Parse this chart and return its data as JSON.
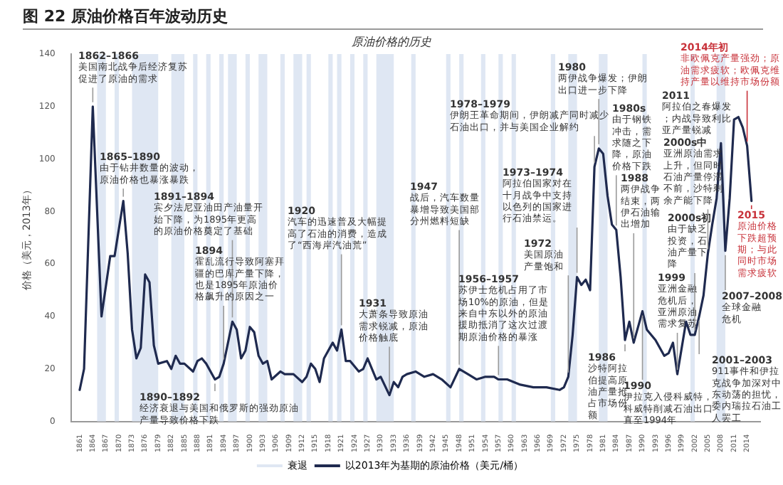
{
  "chart_data": {
    "type": "line",
    "title": "图 22 原油价格百年波动历史",
    "subtitle": "原油价格的历史",
    "ylabel": "价格（美元，2013年）",
    "xlim": [
      1859,
      2017
    ],
    "xticks": [
      1861,
      1864,
      1867,
      1870,
      1873,
      1876,
      1879,
      1882,
      1885,
      1888,
      1891,
      1894,
      1897,
      1900,
      1903,
      1906,
      1909,
      1912,
      1915,
      1918,
      1921,
      1924,
      1927,
      1930,
      1933,
      1936,
      1939,
      1942,
      1945,
      1948,
      1951,
      1954,
      1957,
      1960,
      1963,
      1966,
      1969,
      1972,
      1975,
      1978,
      1981,
      1984,
      1987,
      1990,
      1993,
      1996,
      1999,
      2002,
      2005,
      2008,
      2011,
      2014
    ],
    "ylim": [
      0,
      140
    ],
    "yticks": [
      0,
      20,
      40,
      60,
      80,
      100,
      120,
      140
    ],
    "grid": false,
    "legend": "bottom",
    "marker": "none",
    "line_style": "solid",
    "series": [
      {
        "name": "以2013年为基期的原油价格（美元/桶）",
        "color": "#1f2a4f",
        "x": [
          1861,
          1862,
          1864,
          1866,
          1868,
          1869,
          1871,
          1872,
          1873,
          1874,
          1875,
          1876,
          1877,
          1878,
          1879,
          1881,
          1882,
          1883,
          1884,
          1885,
          1887,
          1888,
          1889,
          1890,
          1892,
          1893,
          1894,
          1896,
          1897,
          1898,
          1899,
          1900,
          1901,
          1902,
          1903,
          1904,
          1905,
          1907,
          1908,
          1910,
          1912,
          1913,
          1914,
          1915,
          1916,
          1917,
          1919,
          1920,
          1921,
          1922,
          1923,
          1925,
          1926,
          1927,
          1929,
          1930,
          1932,
          1933,
          1934,
          1935,
          1936,
          1938,
          1940,
          1942,
          1944,
          1946,
          1948,
          1950,
          1952,
          1954,
          1956,
          1957,
          1959,
          1962,
          1965,
          1968,
          1971,
          1972,
          1973,
          1974,
          1975,
          1976,
          1977,
          1978,
          1979,
          1980,
          1981,
          1982,
          1983,
          1984,
          1985,
          1986,
          1987,
          1988,
          1990,
          1991,
          1993,
          1995,
          1996,
          1997,
          1998,
          2000,
          2001,
          2002,
          2003,
          2004,
          2005,
          2006,
          2007,
          2008,
          2009,
          2010,
          2011,
          2012,
          2013,
          2014,
          2015
        ],
        "values": [
          12,
          20,
          120,
          40,
          63,
          63,
          84,
          64,
          35,
          24,
          28,
          56,
          53,
          29,
          22,
          23,
          20,
          25,
          22,
          22,
          19,
          23,
          24,
          22,
          16,
          17,
          22,
          38,
          35,
          24,
          27,
          36,
          34,
          25,
          22,
          23,
          16,
          19,
          18,
          18,
          15,
          17,
          22,
          20,
          15,
          24,
          30,
          27,
          35,
          23,
          23,
          19,
          20,
          24,
          16,
          17,
          10,
          15,
          13,
          17,
          18,
          19,
          17,
          18,
          16,
          13,
          20,
          18,
          16,
          17,
          17,
          16,
          16,
          14,
          13,
          13,
          12,
          13,
          17,
          33,
          55,
          52,
          54,
          50,
          97,
          104,
          102,
          86,
          75,
          73,
          55,
          31,
          38,
          30,
          42,
          35,
          31,
          25,
          26,
          30,
          18,
          38,
          33,
          33,
          40,
          48,
          64,
          75,
          85,
          106,
          65,
          85,
          115,
          116,
          112,
          105,
          84
        ]
      }
    ],
    "bands": [
      {
        "axis": "x",
        "from": 1865,
        "to": 1867,
        "label": "衰退",
        "color": "#dfe7f3"
      },
      {
        "axis": "x",
        "from": 1869,
        "to": 1870,
        "color": "#dfe7f3"
      },
      {
        "axis": "x",
        "from": 1873,
        "to": 1879,
        "color": "#dfe7f3"
      },
      {
        "axis": "x",
        "from": 1882,
        "to": 1885,
        "color": "#dfe7f3"
      },
      {
        "axis": "x",
        "from": 1887,
        "to": 1888,
        "color": "#dfe7f3"
      },
      {
        "axis": "x",
        "from": 1890,
        "to": 1891,
        "color": "#dfe7f3"
      },
      {
        "axis": "x",
        "from": 1893,
        "to": 1894,
        "color": "#dfe7f3"
      },
      {
        "axis": "x",
        "from": 1895,
        "to": 1897,
        "color": "#dfe7f3"
      },
      {
        "axis": "x",
        "from": 1899,
        "to": 1900,
        "color": "#dfe7f3"
      },
      {
        "axis": "x",
        "from": 1902,
        "to": 1904,
        "color": "#dfe7f3"
      },
      {
        "axis": "x",
        "from": 1907,
        "to": 1908,
        "color": "#dfe7f3"
      },
      {
        "axis": "x",
        "from": 1910,
        "to": 1912,
        "color": "#dfe7f3"
      },
      {
        "axis": "x",
        "from": 1913,
        "to": 1914,
        "color": "#dfe7f3"
      },
      {
        "axis": "x",
        "from": 1918,
        "to": 1919,
        "color": "#dfe7f3"
      },
      {
        "axis": "x",
        "from": 1920,
        "to": 1921,
        "color": "#dfe7f3"
      },
      {
        "axis": "x",
        "from": 1923,
        "to": 1924,
        "color": "#dfe7f3"
      },
      {
        "axis": "x",
        "from": 1926,
        "to": 1927,
        "color": "#dfe7f3"
      },
      {
        "axis": "x",
        "from": 1929,
        "to": 1933,
        "color": "#dfe7f3"
      },
      {
        "axis": "x",
        "from": 1937,
        "to": 1938,
        "color": "#dfe7f3"
      },
      {
        "axis": "x",
        "from": 1945,
        "to": 1946,
        "color": "#dfe7f3"
      },
      {
        "axis": "x",
        "from": 1948,
        "to": 1949,
        "color": "#dfe7f3"
      },
      {
        "axis": "x",
        "from": 1953,
        "to": 1954,
        "color": "#dfe7f3"
      },
      {
        "axis": "x",
        "from": 1957,
        "to": 1958,
        "color": "#dfe7f3"
      },
      {
        "axis": "x",
        "from": 1960,
        "to": 1961,
        "color": "#dfe7f3"
      },
      {
        "axis": "x",
        "from": 1969,
        "to": 1970,
        "color": "#dfe7f3"
      },
      {
        "axis": "x",
        "from": 1973,
        "to": 1975,
        "color": "#dfe7f3"
      },
      {
        "axis": "x",
        "from": 1980,
        "to": 1982,
        "color": "#dfe7f3"
      },
      {
        "axis": "x",
        "from": 1990,
        "to": 1991,
        "color": "#dfe7f3"
      },
      {
        "axis": "x",
        "from": 2001,
        "to": 2002,
        "color": "#dfe7f3"
      },
      {
        "axis": "x",
        "from": 2007,
        "to": 2009,
        "color": "#dfe7f3"
      }
    ],
    "annotations": [
      "1862–1866",
      {
        "text": "美国南北战争后经济复苏促进了原油的需求",
        "x": 1864,
        "y": 120
      },
      "1865–1890",
      {
        "text": "由于钻井数量的波动，原油价格也暴涨暴跌",
        "x": 1871,
        "y": 84
      },
      "1891–1894",
      {
        "text": "宾夕法尼亚油田产油量开始下降，为1895年更高的原油价格奠定了基础",
        "x": 1896,
        "y": 38
      },
      "1894",
      {
        "text": "霍乱流行导致阿塞拜疆的巴库产量下降，也是1895年原油价格飙升的原因之一",
        "x": 1894,
        "y": 22
      },
      {
        "text": "1890–1892",
        "x": 1892,
        "y": 16
      },
      "经济衰退与美国和俄罗斯的强劲原油产量导致价格下跌",
      "1920",
      {
        "text": "汽车的迅速普及大幅提高了石油的消费，造成了“西海岸汽油荒”",
        "x": 1921,
        "y": 35
      },
      "1931",
      {
        "text": "大萧条导致原油需求锐减，原油价格触底",
        "x": 1932,
        "y": 10
      },
      "1947",
      {
        "text": "战后，汽车数量暴增导致美国部分州燃料短缺",
        "x": 1948,
        "y": 20
      },
      "1956–1957",
      {
        "text": "苏伊士危机占用了市场10%的原油，但是来自中东以外的原油援助抵消了这次过渡期原油价格的暴涨",
        "x": 1957,
        "y": 16
      },
      "1972",
      {
        "text": "美国原油产量饱和",
        "x": 1973,
        "y": 17
      },
      "1973–1974",
      {
        "text": "阿拉伯国家对在十月战争中支持以色列的国家进行石油禁运。",
        "x": 1975,
        "y": 55
      },
      "1978–1979",
      {
        "text": "伊朗王革命期间，伊朗减产同时减少石油出口，并与美国企业解约",
        "x": 1979,
        "y": 97
      },
      "1980",
      {
        "text": "两伊战争爆发；伊朗出口进一步下降",
        "x": 1980,
        "y": 104
      },
      "1980s",
      {
        "text": "由于钢铁冲击，需求随之下降，原油价格下跌",
        "x": 1984,
        "y": 73
      },
      {
        "text": "1986",
        "x": 1986,
        "y": 31
      },
      "沙特阿拉伯提高原油产量抢占市场份额",
      "1988",
      {
        "text": "两伊战争结束，两伊石油输出增加",
        "x": 1988,
        "y": 30
      },
      {
        "text": "1990",
        "x": 1990,
        "y": 42
      },
      "伊拉克入侵科威特，科威特削减石油出口直至1994年",
      "1999",
      {
        "text": "亚洲金融危机后，亚洲原油需求复苏",
        "x": 1998,
        "y": 18
      },
      "2000s初",
      {
        "text": "由于缺乏投资，石油产量下降",
        "x": 2002,
        "y": 33
      },
      "2000s中",
      {
        "text": "亚洲原油需求上升，但同时石油产量停滞不前，沙特剩余产能下降",
        "x": 2005,
        "y": 64
      },
      {
        "text": "2001–2003",
        "x": 2003,
        "y": 40
      },
      "911事件和伊拉克战争加深对中东动荡的担忧，委内瑞拉石油工人罢工",
      {
        "text": "2007–2008",
        "x": 2009,
        "y": 65
      },
      "全球金融危机",
      "2011",
      "阿拉伯之春爆发；内战导致利比亚产量锐减",
      "2014年初",
      {
        "text": "非欧佩克产量强劲；原油需求疲软；欧佩克维持产量以维持市场份额",
        "x": 2014,
        "y": 105
      },
      {
        "text": "2015",
        "x": 2015,
        "y": 84
      },
      "原油价格下跌超预期；与此同时市场需求疲软"
    ]
  }
}
